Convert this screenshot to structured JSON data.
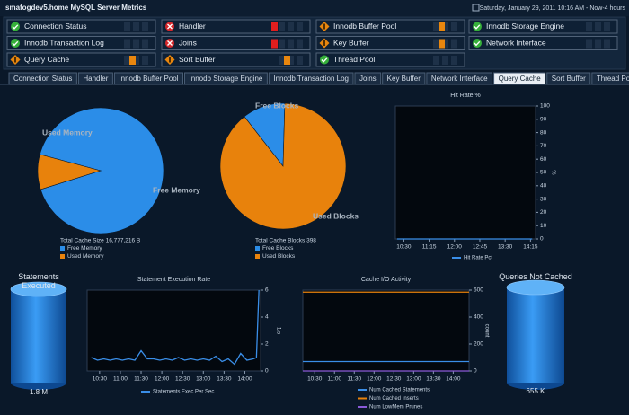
{
  "header": {
    "title": "smafogdev5.home MySQL Server Metrics",
    "time_range": "Saturday, January 29, 2011 10:16 AM - Now-4 hours"
  },
  "status_items": [
    {
      "label": "Connection Status",
      "status": "ok"
    },
    {
      "label": "Handler",
      "status": "error"
    },
    {
      "label": "Innodb Buffer Pool",
      "status": "warning"
    },
    {
      "label": "Innodb Storage Engine",
      "status": "ok"
    },
    {
      "label": "Innodb Transaction Log",
      "status": "ok"
    },
    {
      "label": "Joins",
      "status": "error"
    },
    {
      "label": "Key Buffer",
      "status": "warning"
    },
    {
      "label": "Network Interface",
      "status": "ok"
    },
    {
      "label": "Query Cache",
      "status": "warning"
    },
    {
      "label": "Sort Buffer",
      "status": "warning"
    },
    {
      "label": "Thread Pool",
      "status": "ok"
    }
  ],
  "tabs": [
    "Connection Status",
    "Handler",
    "Innodb Buffer Pool",
    "Innodb Storage Engine",
    "Innodb Transaction Log",
    "Joins",
    "Key Buffer",
    "Network Interface",
    "Query Cache",
    "Sort Buffer",
    "Thread Pool"
  ],
  "active_tab": 8,
  "chart_data": [
    {
      "type": "pie",
      "caption": "Total Cache Size 16,777,216 B",
      "categories": [
        "Free Memory",
        "Used Memory"
      ],
      "values": [
        91,
        9
      ],
      "colors": [
        "#2b8de8",
        "#e8820c"
      ]
    },
    {
      "type": "pie",
      "caption": "Total Cache Blocks 398",
      "categories": [
        "Free Blocks",
        "Used Blocks"
      ],
      "values": [
        11,
        89
      ],
      "colors": [
        "#2b8de8",
        "#e8820c"
      ]
    },
    {
      "type": "line",
      "title": "Hit Rate %",
      "y_label": "%",
      "x": [
        10.3,
        14.3
      ],
      "series": [
        {
          "name": "Hit Rate Pct",
          "color": "#3a8ee8",
          "values": [
            0,
            0
          ]
        }
      ],
      "xlim": [
        10.25,
        14.4
      ],
      "xticks": [
        {
          "value": 10.5,
          "label": "10:30"
        },
        {
          "value": 11.25,
          "label": "11:15"
        },
        {
          "value": 12,
          "label": "12:00"
        },
        {
          "value": 12.75,
          "label": "12:45"
        },
        {
          "value": 13.5,
          "label": "13:30"
        },
        {
          "value": 14.25,
          "label": "14:15"
        }
      ],
      "ylim": [
        0,
        100
      ],
      "yticks": [
        0,
        10,
        20,
        30,
        40,
        50,
        60,
        70,
        80,
        90,
        100
      ]
    },
    {
      "type": "gauge",
      "title": "Statements Executed",
      "value": 1800000,
      "value_label": "1.8 M",
      "color": "#2b8de8"
    },
    {
      "type": "line",
      "title": "Statement Execution Rate",
      "y_label": "1/s",
      "x": [
        10.3,
        10.45,
        10.6,
        10.75,
        10.9,
        11.05,
        11.2,
        11.35,
        11.5,
        11.65,
        11.8,
        11.95,
        12.1,
        12.25,
        12.4,
        12.55,
        12.7,
        12.85,
        13.0,
        13.15,
        13.3,
        13.45,
        13.6,
        13.75,
        13.9,
        14.05,
        14.2,
        14.28,
        14.34
      ],
      "series": [
        {
          "name": "Statements Exec Per Sec",
          "color": "#3a8ee8",
          "values": [
            1.0,
            0.8,
            0.9,
            0.8,
            0.9,
            0.8,
            0.9,
            0.8,
            1.5,
            0.9,
            0.9,
            0.8,
            0.9,
            0.8,
            1.0,
            0.8,
            0.9,
            0.8,
            0.9,
            0.8,
            1.1,
            0.7,
            0.9,
            0.5,
            1.3,
            0.8,
            0.9,
            1.0,
            6.0
          ]
        }
      ],
      "xlim": [
        10.2,
        14.38
      ],
      "xticks": [
        {
          "value": 10.5,
          "label": "10:30"
        },
        {
          "value": 11,
          "label": "11:00"
        },
        {
          "value": 11.5,
          "label": "11:30"
        },
        {
          "value": 12,
          "label": "12:00"
        },
        {
          "value": 12.5,
          "label": "12:30"
        },
        {
          "value": 13,
          "label": "13:00"
        },
        {
          "value": 13.5,
          "label": "13:30"
        },
        {
          "value": 14,
          "label": "14:00"
        }
      ],
      "ylim": [
        0,
        6
      ],
      "yticks": [
        0,
        2,
        4,
        6
      ]
    },
    {
      "type": "line",
      "title": "Cache I/O Activity",
      "y_label": "count",
      "x": [
        10.2,
        11,
        12,
        13,
        14,
        14.4
      ],
      "series": [
        {
          "name": "Num Cached Statements",
          "color": "#3a8ee8",
          "values": [
            70,
            70,
            70,
            70,
            70,
            70
          ]
        },
        {
          "name": "Num Cached Inserts",
          "color": "#e8820c",
          "values": [
            585,
            585,
            585,
            585,
            585,
            585
          ]
        },
        {
          "name": "Num LowMem Prunes",
          "color": "#8a5ad8",
          "values": [
            0,
            0,
            0,
            0,
            0,
            0
          ]
        }
      ],
      "xlim": [
        10.2,
        14.4
      ],
      "xticks": [
        {
          "value": 10.5,
          "label": "10:30"
        },
        {
          "value": 11,
          "label": "11:00"
        },
        {
          "value": 11.5,
          "label": "11:30"
        },
        {
          "value": 12,
          "label": "12:00"
        },
        {
          "value": 12.5,
          "label": "12:30"
        },
        {
          "value": 13,
          "label": "13:00"
        },
        {
          "value": 13.5,
          "label": "13:30"
        },
        {
          "value": 14,
          "label": "14:00"
        }
      ],
      "ylim": [
        0,
        600
      ],
      "yticks": [
        0,
        200,
        400,
        600
      ]
    },
    {
      "type": "gauge",
      "title": "Queries Not Cached",
      "value": 655000,
      "value_label": "655 K",
      "color": "#2b8de8"
    }
  ]
}
